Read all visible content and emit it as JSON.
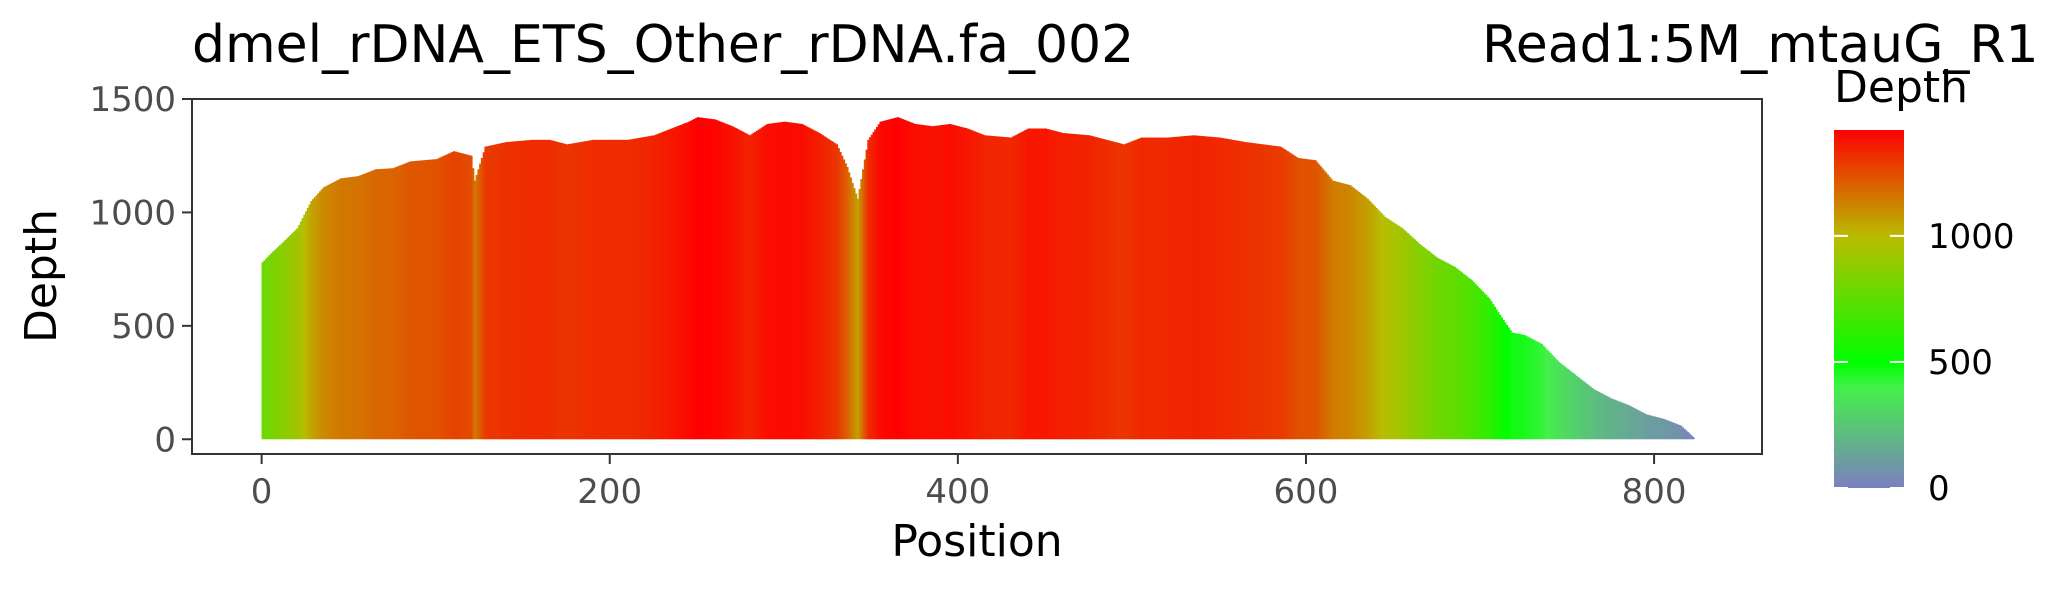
{
  "chart_data": {
    "type": "bar",
    "title": "dmel_rDNA_ETS_Other_rDNA.fa_002",
    "subtitle": "Read1:5M_mtauG_R1",
    "xlabel": "Position",
    "ylabel": "Depth",
    "xlim": [
      -40,
      862
    ],
    "ylim": [
      -65,
      1500
    ],
    "x_ticks": [
      0,
      200,
      400,
      600,
      800
    ],
    "y_ticks": [
      0,
      500,
      1000,
      1500
    ],
    "grid": false,
    "legend": {
      "title": "Depth",
      "position": "right",
      "type": "colorbar",
      "range": [
        0,
        1420
      ],
      "ticks": [
        0,
        500,
        1000
      ],
      "colors": [
        "#7b7fc0",
        "#44f04a",
        "#00ff00",
        "#b8bd00",
        "#ff0000"
      ],
      "color_stops": [
        0,
        0.28,
        0.35,
        0.7,
        1
      ]
    },
    "depth_profile": [
      [
        0,
        780
      ],
      [
        5,
        820
      ],
      [
        12,
        870
      ],
      [
        20,
        930
      ],
      [
        28,
        1050
      ],
      [
        35,
        1110
      ],
      [
        45,
        1150
      ],
      [
        55,
        1160
      ],
      [
        65,
        1190
      ],
      [
        75,
        1195
      ],
      [
        85,
        1225
      ],
      [
        100,
        1235
      ],
      [
        110,
        1270
      ],
      [
        120,
        1250
      ],
      [
        122,
        1140
      ],
      [
        128,
        1290
      ],
      [
        140,
        1310
      ],
      [
        155,
        1320
      ],
      [
        165,
        1320
      ],
      [
        175,
        1300
      ],
      [
        190,
        1320
      ],
      [
        200,
        1320
      ],
      [
        210,
        1320
      ],
      [
        225,
        1340
      ],
      [
        235,
        1370
      ],
      [
        245,
        1400
      ],
      [
        250,
        1420
      ],
      [
        260,
        1410
      ],
      [
        270,
        1380
      ],
      [
        280,
        1340
      ],
      [
        290,
        1390
      ],
      [
        300,
        1400
      ],
      [
        310,
        1390
      ],
      [
        320,
        1350
      ],
      [
        330,
        1300
      ],
      [
        336,
        1200
      ],
      [
        342,
        1060
      ],
      [
        348,
        1320
      ],
      [
        355,
        1400
      ],
      [
        365,
        1420
      ],
      [
        375,
        1390
      ],
      [
        385,
        1380
      ],
      [
        395,
        1390
      ],
      [
        405,
        1370
      ],
      [
        415,
        1340
      ],
      [
        430,
        1330
      ],
      [
        440,
        1370
      ],
      [
        450,
        1370
      ],
      [
        460,
        1350
      ],
      [
        475,
        1340
      ],
      [
        485,
        1320
      ],
      [
        495,
        1300
      ],
      [
        505,
        1330
      ],
      [
        520,
        1330
      ],
      [
        535,
        1340
      ],
      [
        550,
        1330
      ],
      [
        565,
        1310
      ],
      [
        575,
        1300
      ],
      [
        585,
        1290
      ],
      [
        595,
        1240
      ],
      [
        605,
        1230
      ],
      [
        615,
        1140
      ],
      [
        625,
        1120
      ],
      [
        635,
        1060
      ],
      [
        645,
        980
      ],
      [
        655,
        930
      ],
      [
        665,
        860
      ],
      [
        675,
        800
      ],
      [
        685,
        760
      ],
      [
        695,
        700
      ],
      [
        705,
        620
      ],
      [
        710,
        560
      ],
      [
        718,
        470
      ],
      [
        725,
        460
      ],
      [
        735,
        420
      ],
      [
        745,
        340
      ],
      [
        755,
        280
      ],
      [
        765,
        220
      ],
      [
        775,
        180
      ],
      [
        785,
        150
      ],
      [
        795,
        110
      ],
      [
        805,
        90
      ],
      [
        815,
        60
      ],
      [
        822,
        10
      ]
    ]
  }
}
